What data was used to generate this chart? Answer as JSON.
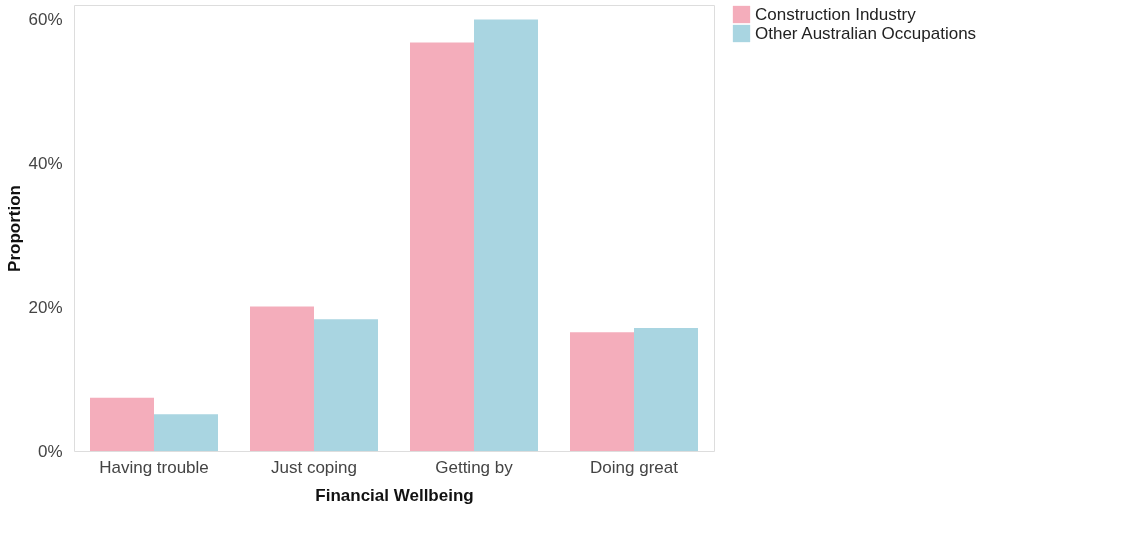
{
  "chart_data": {
    "type": "bar",
    "xlabel": "Financial Wellbeing",
    "ylabel": "Proportion",
    "categories": [
      "Having trouble",
      "Just coping",
      "Getting by",
      "Doing great"
    ],
    "series": [
      {
        "name": "Construction Industry",
        "color": "#f4adbb",
        "values": [
          7.4,
          20.1,
          56.8,
          16.5
        ]
      },
      {
        "name": "Other Australian Occupations",
        "color": "#a9d5e1",
        "values": [
          5.1,
          18.3,
          60.0,
          17.1
        ]
      }
    ],
    "ylim": [
      0,
      62
    ],
    "yticks": [
      {
        "value": 0,
        "label": "0%"
      },
      {
        "value": 20,
        "label": "20%"
      },
      {
        "value": 40,
        "label": "40%"
      },
      {
        "value": 60,
        "label": "60%"
      }
    ],
    "grid": false,
    "legend": "right"
  }
}
